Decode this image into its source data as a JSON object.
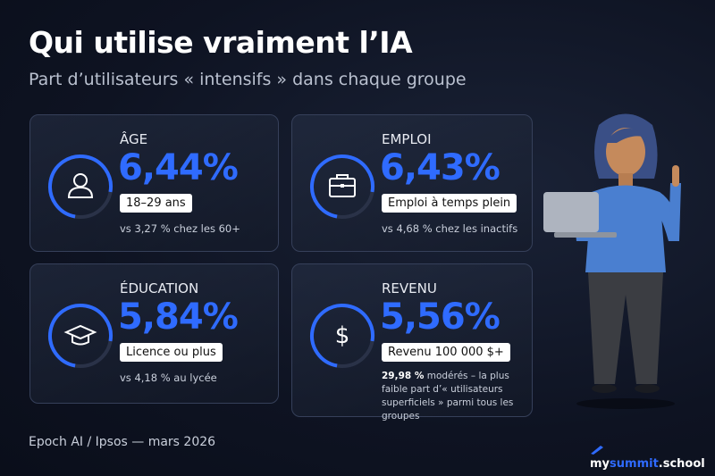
{
  "header": {
    "title": "Qui utilise vraiment l’IA",
    "subtitle": "Part d’utilisateurs « intensifs » dans chaque groupe"
  },
  "cards": [
    {
      "label": "ÂGE",
      "value": "6,44%",
      "group": "18–29 ans",
      "note": "vs 3,27 % chez les 60+"
    },
    {
      "label": "EMPLOI",
      "value": "6,43%",
      "group": "Emploi à temps plein",
      "note": "vs 4,68 % chez les inactifs"
    },
    {
      "label": "ÉDUCATION",
      "value": "5,84%",
      "group": "Licence ou plus",
      "note": "vs 4,18 % au lycée"
    },
    {
      "label": "REVENU",
      "value": "5,56%",
      "group": "Revenu 100 000 $+",
      "note_strong": "29,98 %",
      "note": "modérés – la plus faible part d’« utilisateurs superficiels » parmi tous les groupes"
    }
  ],
  "footer": {
    "source": "Epoch AI / Ipsos — mars 2026",
    "brand": [
      "my",
      "summit",
      ".school"
    ]
  }
}
